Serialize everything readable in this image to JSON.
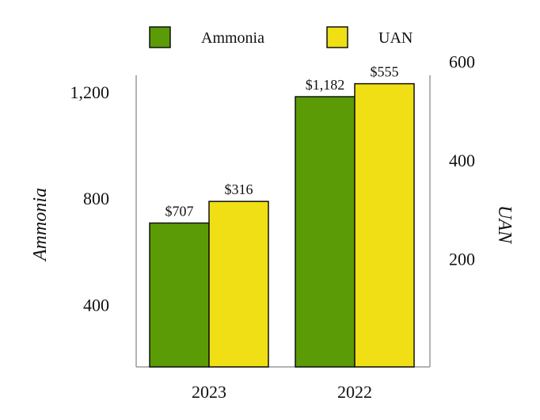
{
  "chart_data": {
    "type": "bar",
    "categories": [
      "2023",
      "2022"
    ],
    "series": [
      {
        "name": "Ammonia",
        "axis": "left",
        "color": "#5a9b06",
        "values": [
          707,
          1182
        ],
        "labels": [
          "$707",
          "$1,182"
        ]
      },
      {
        "name": "UAN",
        "axis": "right",
        "color": "#efdf14",
        "values": [
          316,
          555
        ],
        "labels": [
          "$316",
          "$555"
        ]
      }
    ],
    "y_left": {
      "label": "Ammonia",
      "ticks": [
        400,
        800,
        1200
      ],
      "tick_labels": [
        "400",
        "800",
        "1,200"
      ],
      "ylim": [
        166,
        1230
      ]
    },
    "y_right": {
      "label": "UAN",
      "ticks": [
        200,
        400,
        600
      ],
      "tick_labels": [
        "200",
        "400",
        "600"
      ],
      "ylim": [
        -20,
        650
      ]
    },
    "legend_position": "top-center",
    "grid": false
  }
}
